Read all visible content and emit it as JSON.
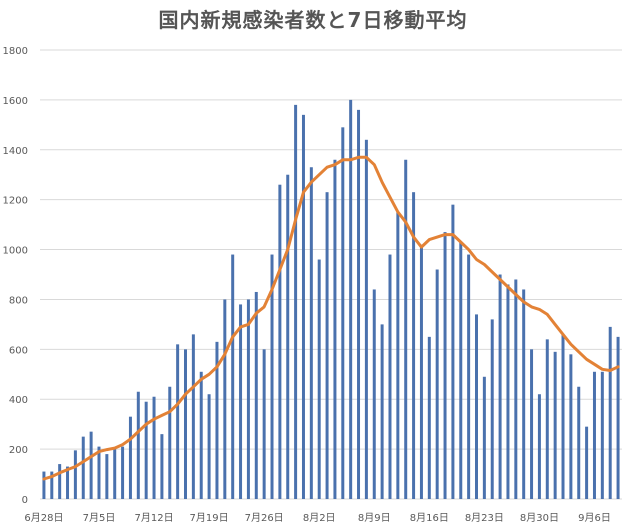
{
  "chart_data": {
    "type": "bar",
    "title": "国内新規感染者数と7日移動平均",
    "ylim": [
      0,
      1800
    ],
    "ytick_labels": [
      "0",
      "200",
      "400",
      "600",
      "800",
      "1000",
      "1200",
      "1400",
      "1600",
      "1800"
    ],
    "xtick_labels": [
      "6月28日",
      "7月5日",
      "7月12日",
      "7月19日",
      "7月26日",
      "8月2日",
      "8月9日",
      "8月16日",
      "8月23日",
      "8月30日",
      "9月6日"
    ],
    "grid": true,
    "colors": {
      "bar": "#4a71ad",
      "line": "#e38236",
      "grid": "#d9d9d9",
      "axis_text": "#595959"
    },
    "series": [
      {
        "kind": "bar",
        "values": [
          110,
          110,
          140,
          130,
          195,
          250,
          270,
          210,
          180,
          200,
          210,
          330,
          430,
          390,
          410,
          260,
          450,
          620,
          600,
          660,
          510,
          420,
          630,
          800,
          980,
          780,
          800,
          830,
          600,
          980,
          1260,
          1300,
          1580,
          1540,
          1330,
          960,
          1230,
          1360,
          1490,
          1600,
          1560,
          1440,
          840,
          700,
          980,
          1150,
          1360,
          1230,
          1020,
          650,
          920,
          1070,
          1180,
          1030,
          980,
          740,
          490,
          720,
          900,
          860,
          880,
          840,
          600,
          420,
          640,
          590,
          660,
          580,
          450,
          290,
          510,
          510,
          690,
          650
        ]
      },
      {
        "kind": "line",
        "values": [
          80,
          90,
          105,
          118,
          130,
          150,
          170,
          190,
          198,
          204,
          218,
          240,
          270,
          300,
          320,
          335,
          350,
          380,
          420,
          450,
          480,
          500,
          530,
          580,
          650,
          690,
          700,
          745,
          770,
          840,
          920,
          1000,
          1120,
          1230,
          1270,
          1300,
          1330,
          1340,
          1360,
          1360,
          1370,
          1370,
          1340,
          1270,
          1210,
          1150,
          1110,
          1050,
          1010,
          1040,
          1050,
          1060,
          1060,
          1030,
          1000,
          960,
          940,
          910,
          880,
          850,
          820,
          790,
          770,
          760,
          740,
          700,
          660,
          620,
          590,
          560,
          540,
          520,
          515,
          530
        ]
      }
    ]
  }
}
